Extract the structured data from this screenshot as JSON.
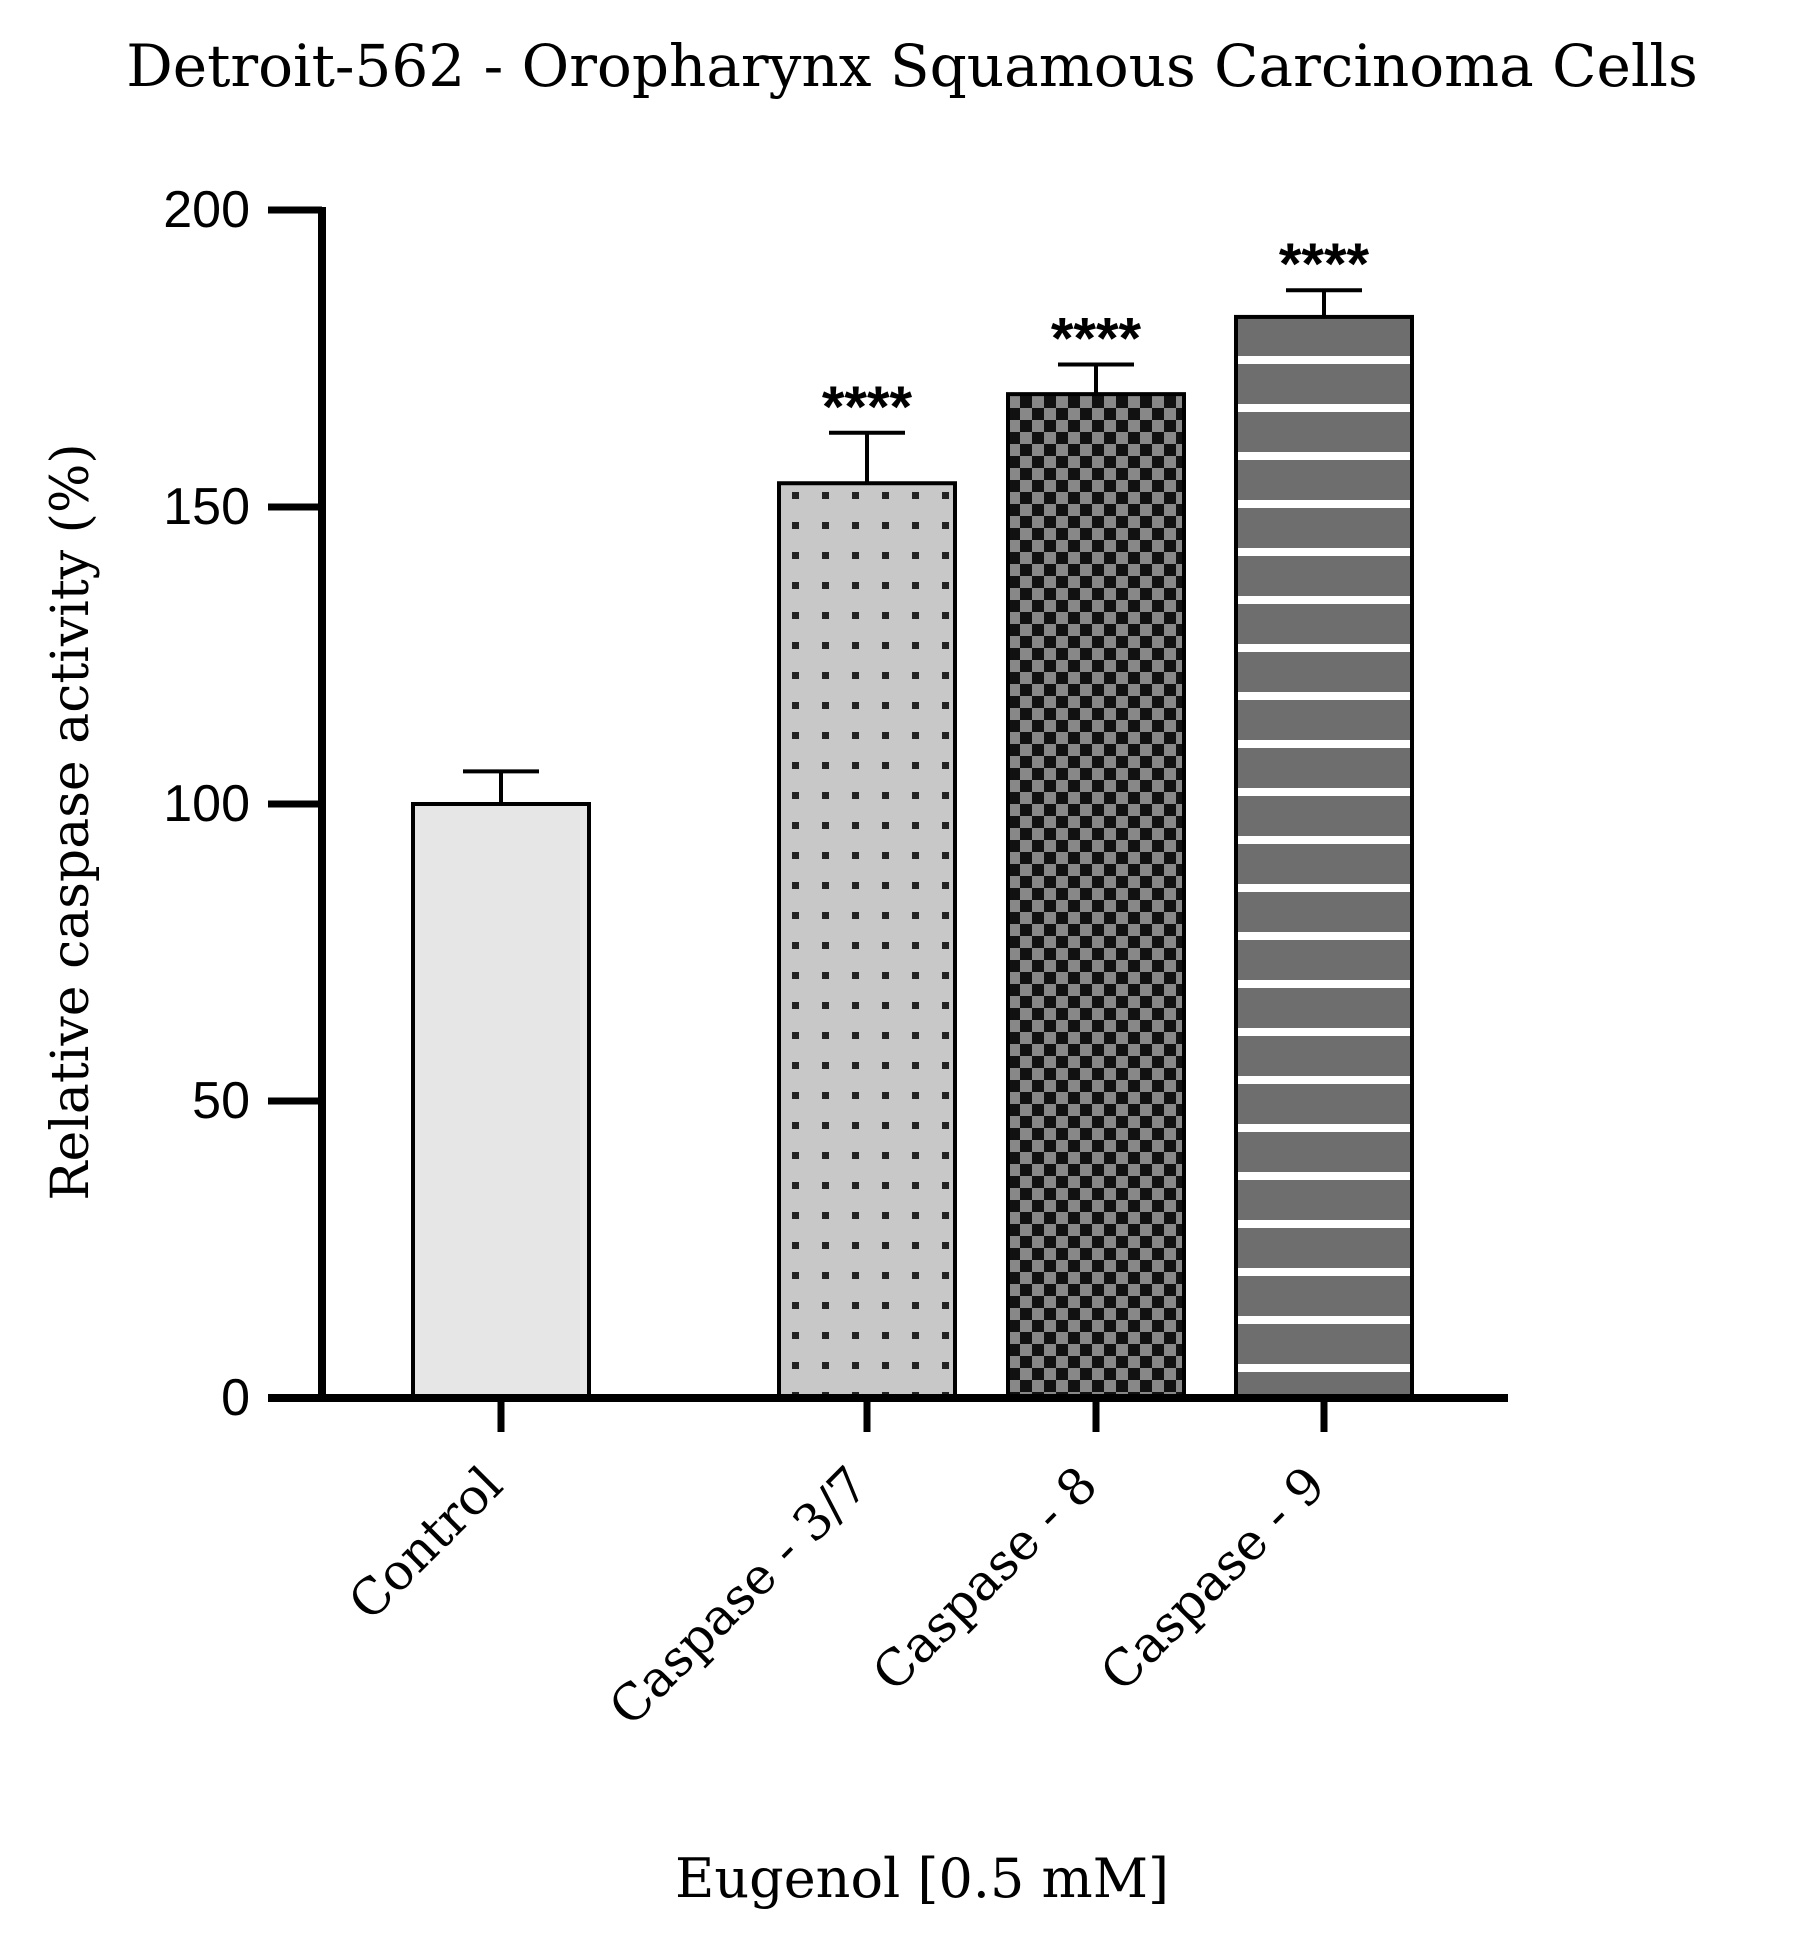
{
  "chart_data": {
    "type": "bar",
    "title": "Detroit-562 - Oropharynx Squamous Carcinoma Cells",
    "xlabel": "Eugenol [0.5 mM]",
    "ylabel": "Relative caspase activity (%)",
    "ylim": [
      0,
      200
    ],
    "yticks": [
      0,
      50,
      100,
      150,
      200
    ],
    "categories": [
      "Control",
      "Caspase - 3/7",
      "Caspase - 8",
      "Caspase - 9"
    ],
    "values": [
      100,
      154,
      169,
      182
    ],
    "errors": [
      5.5,
      8.5,
      5,
      4.5
    ],
    "significance": [
      "",
      "****",
      "****",
      "****"
    ],
    "fills": [
      "solid-light-gray",
      "dotted-gray",
      "checkerboard-dark",
      "horizontal-stripes-gray"
    ],
    "colors": {
      "control": "#e6e6e6",
      "dots_bg": "#c8c8c8",
      "dots_fg": "#222222",
      "checker_a": "#111111",
      "checker_b": "#888888",
      "stripes_bg": "#6e6e6e",
      "stripes_fg": "#ffffff",
      "axis": "#000000"
    },
    "grid": false,
    "legend": "none"
  }
}
